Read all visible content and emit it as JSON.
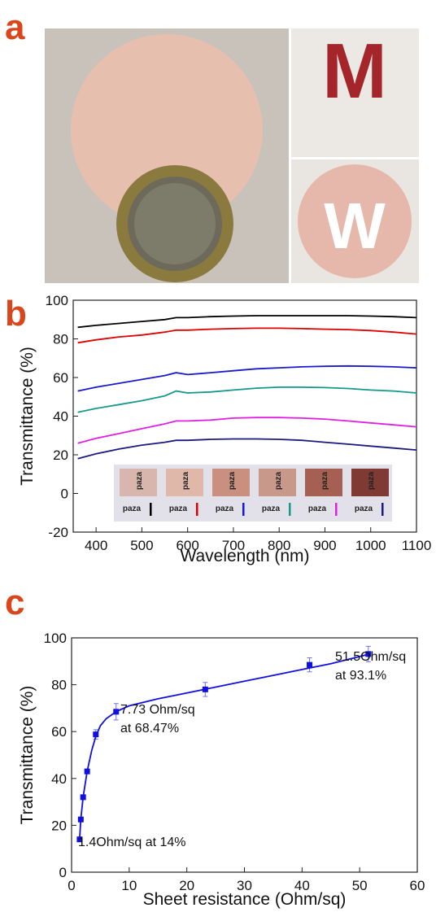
{
  "photo_panel": {
    "panel_label": "a",
    "photo_texts": [
      "M",
      "W"
    ]
  },
  "chart_data": [
    {
      "type": "line",
      "panel_label": "b",
      "x_label": "Wavelength (nm)",
      "y_label": "Transmittance (%)",
      "x": [
        360,
        400,
        450,
        500,
        550,
        575,
        600,
        650,
        700,
        750,
        800,
        850,
        900,
        950,
        1000,
        1050,
        1100
      ],
      "series": [
        {
          "color": "#000000",
          "values": [
            86,
            87,
            88,
            89,
            90,
            91,
            91,
            91.5,
            91.8,
            92,
            92,
            92,
            92,
            92,
            91.8,
            91.5,
            91
          ]
        },
        {
          "color": "#e00000",
          "values": [
            78,
            79.5,
            81,
            82,
            83.5,
            84.5,
            84.5,
            85,
            85.3,
            85.5,
            85.5,
            85.3,
            85,
            84.8,
            84.3,
            83.5,
            82.5
          ]
        },
        {
          "color": "#1a1acc",
          "values": [
            53,
            55,
            57,
            59,
            61,
            62.5,
            61.5,
            62.5,
            63.5,
            64.5,
            65,
            65.5,
            65.8,
            66,
            65.8,
            65.5,
            65
          ]
        },
        {
          "color": "#139a8a",
          "values": [
            42,
            44,
            46,
            48,
            50.5,
            53,
            52,
            52.5,
            53.5,
            54.5,
            55,
            55,
            54.8,
            54.3,
            53.5,
            53,
            52
          ]
        },
        {
          "color": "#e020e0",
          "values": [
            26,
            28.5,
            31,
            33.5,
            36,
            37.5,
            37.5,
            38,
            39,
            39.3,
            39.3,
            39,
            38.5,
            37.5,
            36.5,
            35.5,
            34.5
          ]
        },
        {
          "color": "#1a1a80",
          "values": [
            18,
            20.5,
            23,
            25,
            26.5,
            27.5,
            27.5,
            28,
            28.2,
            28.2,
            28,
            27.5,
            26.5,
            25.5,
            24.5,
            23.5,
            22.5
          ]
        }
      ],
      "inset_labels": [
        "paza",
        "paza",
        "paza",
        "paza",
        "paza",
        "paza",
        "paza",
        "paza",
        "paza",
        "paza",
        "paza",
        "paza"
      ],
      "xlim": [
        350,
        1100
      ],
      "xticks": [
        400,
        500,
        600,
        700,
        800,
        900,
        1000,
        1100
      ],
      "ylim": [
        -20,
        100
      ],
      "yticks": [
        -20,
        0,
        20,
        40,
        60,
        80,
        100
      ]
    },
    {
      "type": "scatter",
      "panel_label": "c",
      "x_label": "Sheet resistance (Ohm/sq)",
      "y_label": "Transmittance (%)",
      "x": [
        1.4,
        1.6,
        2,
        2.7,
        4.2,
        7.73,
        23.2,
        41.3,
        51.5
      ],
      "values": [
        14,
        22.5,
        32,
        43,
        58.8,
        68.47,
        78,
        88.5,
        93.1
      ],
      "errors": [
        0.5,
        1,
        1,
        1,
        2,
        3.5,
        3,
        3,
        3.3
      ],
      "color": "#1010e0",
      "fit": {
        "x": [
          1.4,
          1.6,
          2,
          2.7,
          3.5,
          4.2,
          5,
          6,
          7.73,
          10,
          15,
          20,
          25,
          30,
          35,
          40,
          45,
          51.5
        ],
        "values": [
          14,
          22.5,
          32,
          43,
          52,
          58,
          62.5,
          65.5,
          68.5,
          71,
          74,
          76.5,
          79,
          81.5,
          84,
          86.5,
          89,
          93
        ]
      },
      "annotations": [
        {
          "lines": [
            "1.4Ohm/sq at 14%"
          ]
        },
        {
          "lines": [
            "7.73 Ohm/sq",
            "at 68.47%"
          ]
        },
        {
          "lines": [
            "51.5Ohm/sq",
            "at 93.1%"
          ]
        }
      ],
      "xlim": [
        0,
        60
      ],
      "xticks": [
        0,
        10,
        20,
        30,
        40,
        50,
        60
      ],
      "ylim": [
        0,
        100
      ],
      "yticks": [
        0,
        20,
        40,
        60,
        80,
        100
      ]
    }
  ]
}
